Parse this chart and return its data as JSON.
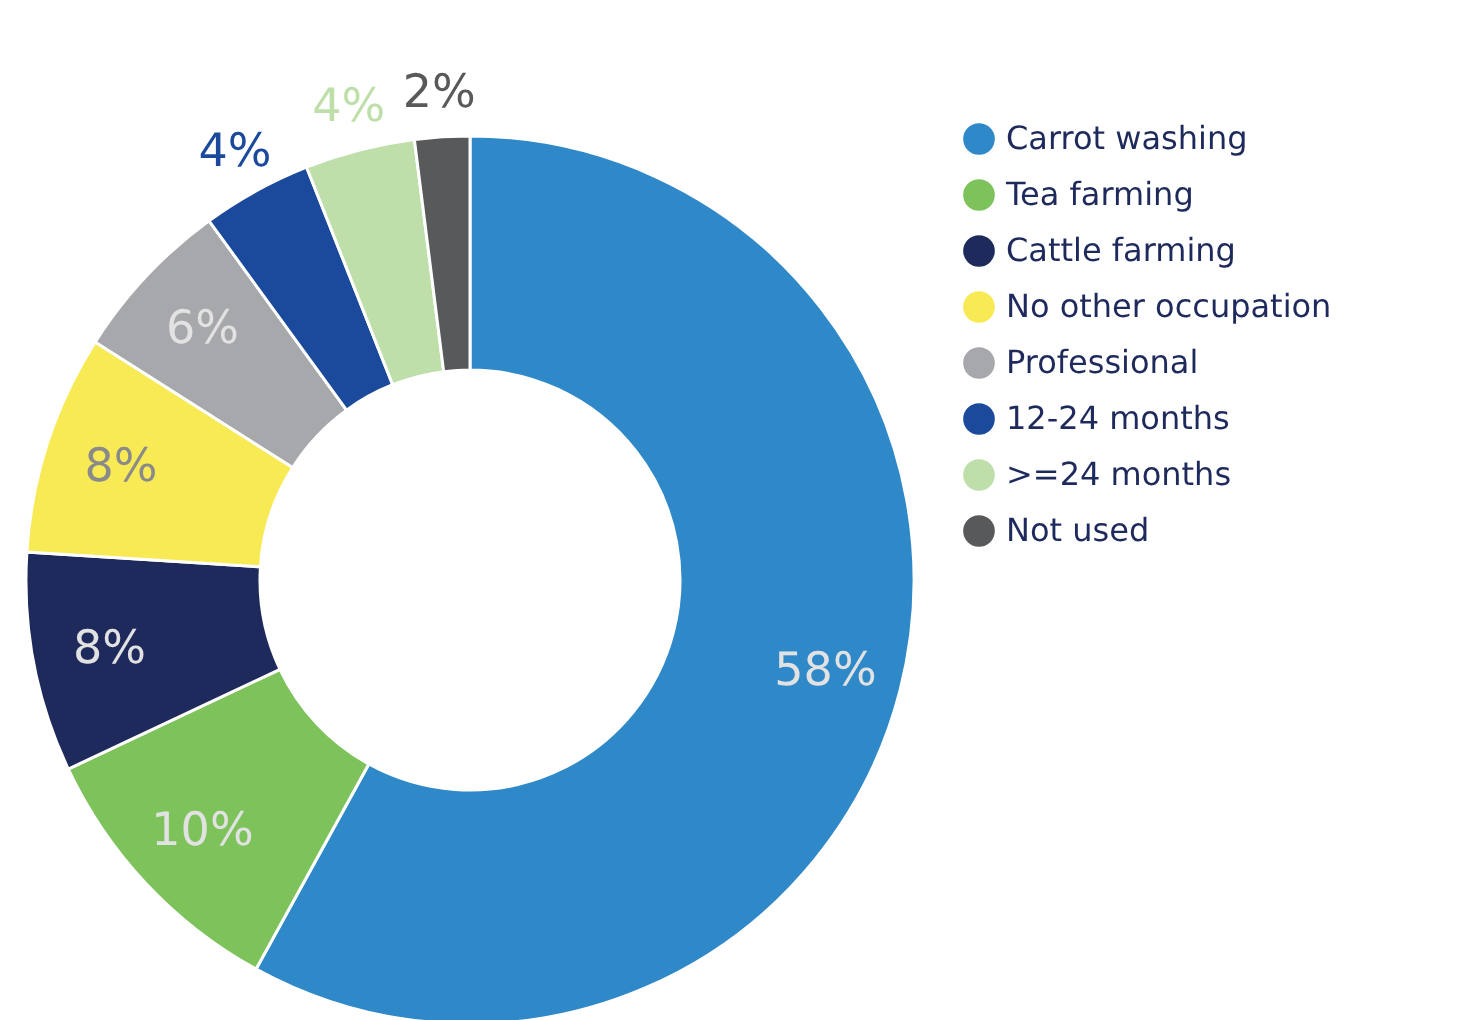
{
  "chart_data": {
    "type": "donut",
    "categories": [
      "Carrot washing",
      "Tea farming",
      "Cattle farming",
      "No other occupation",
      "Professional",
      "12-24 months",
      ">=24 months",
      "Not used"
    ],
    "values": [
      58,
      10,
      8,
      8,
      6,
      4,
      4,
      2
    ],
    "colors": [
      "#2f88c8",
      "#7dc25a",
      "#1f2a5c",
      "#f7ea55",
      "#a7a8ab",
      "#1b4a9c",
      "#bfdfaa",
      "#58595b"
    ],
    "value_labels": [
      "58%",
      "10%",
      "8%",
      "8%",
      "6%",
      "4%",
      "4%",
      "2%"
    ],
    "legend": "right"
  }
}
